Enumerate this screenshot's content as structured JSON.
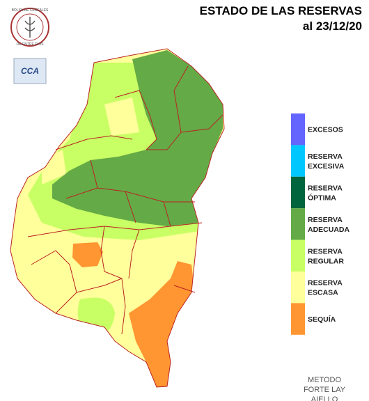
{
  "header": {
    "title": "ESTADO DE LAS RESERVAS",
    "date": "al  23/12/20"
  },
  "logo": {
    "org": "BOLSA DE CEREALES",
    "region": "DE ENTRE RIOS",
    "badge": "CCA"
  },
  "legend": [
    {
      "color": "#6464ff",
      "lines": [
        "EXCESOS"
      ]
    },
    {
      "color": "#00c8ff",
      "lines": [
        "RESERVA",
        "EXCESIVA"
      ]
    },
    {
      "color": "#00643c",
      "lines": [
        "RESERVA",
        "ÓPTIMA"
      ]
    },
    {
      "color": "#64aa46",
      "lines": [
        "RESERVA",
        "ADECUADA"
      ]
    },
    {
      "color": "#c8ff64",
      "lines": [
        "RESERVA",
        "REGULAR"
      ]
    },
    {
      "color": "#ffff9b",
      "lines": [
        "RESERVA",
        "ESCASA"
      ]
    },
    {
      "color": "#ff9632",
      "lines": [
        "SEQUÍA"
      ]
    }
  ],
  "footer": {
    "lines": [
      "METODO",
      "FORTE LAY",
      "AIELLO"
    ]
  }
}
